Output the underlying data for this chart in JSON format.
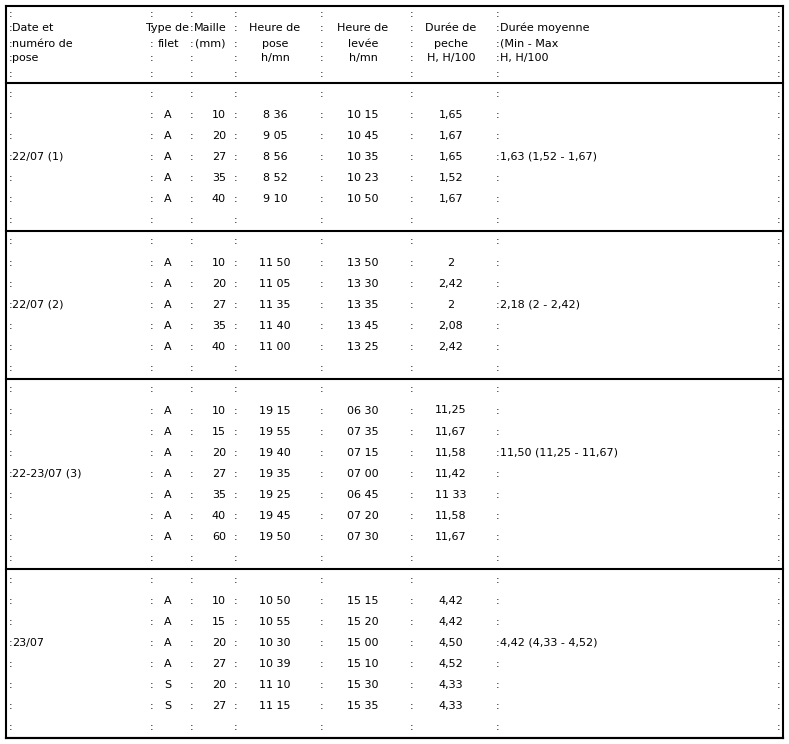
{
  "sections": [
    {
      "date_label": "22/07 (1)",
      "rows": [
        [
          "A",
          "10",
          "8 36",
          "10 15",
          "1,65",
          ""
        ],
        [
          "A",
          "20",
          "9 05",
          "10 45",
          "1,67",
          ""
        ],
        [
          "A",
          "27",
          "8 56",
          "10 35",
          "1,65",
          "1,63 (1,52 - 1,67)"
        ],
        [
          "A",
          "35",
          "8 52",
          "10 23",
          "1,52",
          ""
        ],
        [
          "A",
          "40",
          "9 10",
          "10 50",
          "1,67",
          ""
        ]
      ],
      "date_row": 2
    },
    {
      "date_label": "22/07 (2)",
      "rows": [
        [
          "A",
          "10",
          "11 50",
          "13 50",
          "2",
          ""
        ],
        [
          "A",
          "20",
          "11 05",
          "13 30",
          "2,42",
          ""
        ],
        [
          "A",
          "27",
          "11 35",
          "13 35",
          "2",
          "2,18 (2 - 2,42)"
        ],
        [
          "A",
          "35",
          "11 40",
          "13 45",
          "2,08",
          ""
        ],
        [
          "A",
          "40",
          "11 00",
          "13 25",
          "2,42",
          ""
        ]
      ],
      "date_row": 2
    },
    {
      "date_label": "22-23/07 (3)",
      "rows": [
        [
          "A",
          "10",
          "19 15",
          "06 30",
          "11,25",
          ""
        ],
        [
          "A",
          "15",
          "19 55",
          "07 35",
          "11,67",
          ""
        ],
        [
          "A",
          "20",
          "19 40",
          "07 15",
          "11,58",
          "11,50 (11,25 - 11,67)"
        ],
        [
          "A",
          "27",
          "19 35",
          "07 00",
          "11,42",
          ""
        ],
        [
          "A",
          "35",
          "19 25",
          "06 45",
          "11 33",
          ""
        ],
        [
          "A",
          "40",
          "19 45",
          "07 20",
          "11,58",
          ""
        ],
        [
          "A",
          "60",
          "19 50",
          "07 30",
          "11,67",
          ""
        ]
      ],
      "date_row": 3
    },
    {
      "date_label": "23/07",
      "rows": [
        [
          "A",
          "10",
          "10 50",
          "15 15",
          "4,42",
          ""
        ],
        [
          "A",
          "15",
          "10 55",
          "15 20",
          "4,42",
          ""
        ],
        [
          "A",
          "20",
          "10 30",
          "15 00",
          "4,50",
          "4,42 (4,33 - 4,52)"
        ],
        [
          "A",
          "27",
          "10 39",
          "15 10",
          "4,52",
          ""
        ],
        [
          "S",
          "20",
          "11 10",
          "15 30",
          "4,33",
          ""
        ],
        [
          "S",
          "27",
          "11 15",
          "15 35",
          "4,33",
          ""
        ]
      ],
      "date_row": 2
    }
  ],
  "bg_color": "#ffffff",
  "text_color": "#000000",
  "line_color": "#000000",
  "font_size": 8.0
}
